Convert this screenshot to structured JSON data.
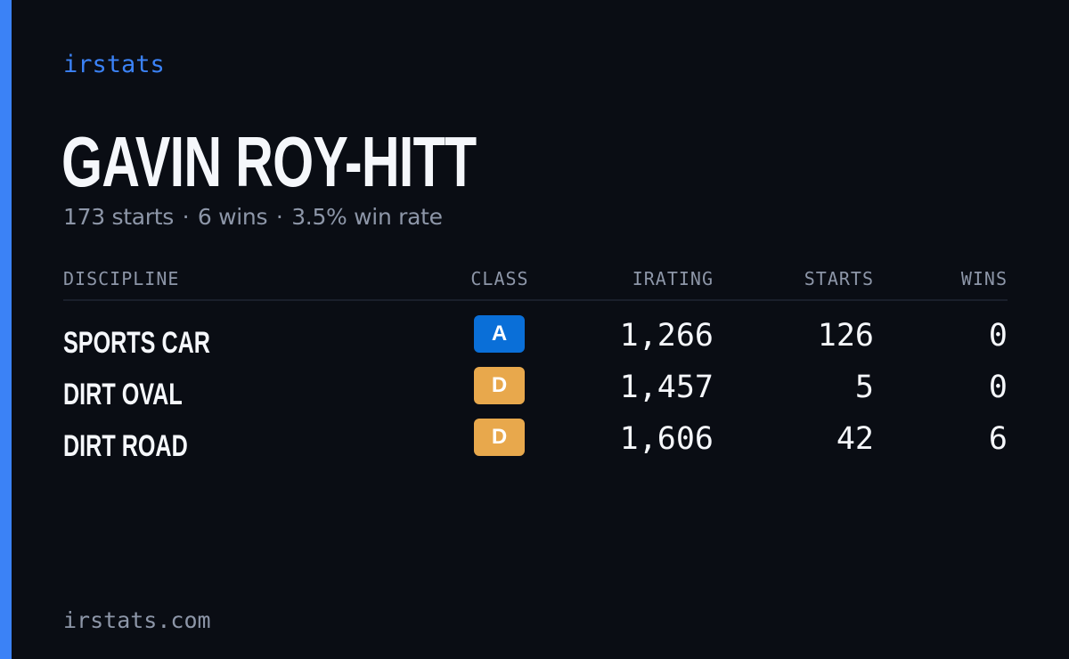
{
  "brand": "irstats",
  "driver": {
    "name": "GAVIN ROY-HITT",
    "starts_text": "173 starts",
    "wins_text": "6 wins",
    "win_rate_text": "3.5% win rate",
    "separator": "·"
  },
  "table": {
    "headers": {
      "discipline": "DISCIPLINE",
      "class": "CLASS",
      "irating": "IRATING",
      "starts": "STARTS",
      "wins": "WINS"
    },
    "rows": [
      {
        "discipline": "SPORTS CAR",
        "class": "A",
        "class_color": "#0a6fd8",
        "irating": "1,266",
        "starts": "126",
        "wins": "0"
      },
      {
        "discipline": "DIRT OVAL",
        "class": "D",
        "class_color": "#e8a84c",
        "irating": "1,457",
        "starts": "5",
        "wins": "0"
      },
      {
        "discipline": "DIRT ROAD",
        "class": "D",
        "class_color": "#e8a84c",
        "irating": "1,606",
        "starts": "42",
        "wins": "6"
      }
    ]
  },
  "footer": "irstats.com",
  "colors": {
    "background": "#0a0d14",
    "accent": "#3b82f6",
    "text_primary": "#f5f7fb",
    "text_muted": "#8d96a8"
  }
}
